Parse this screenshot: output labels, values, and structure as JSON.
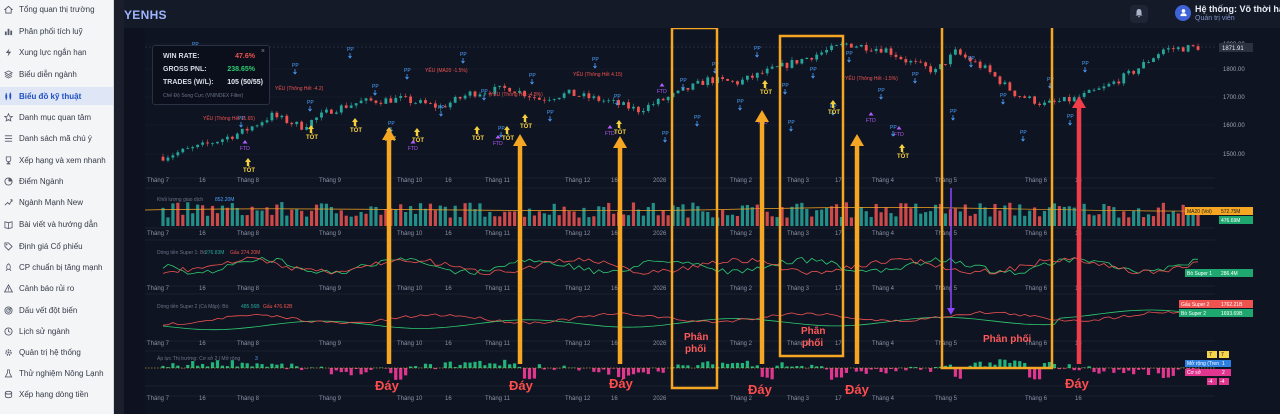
{
  "app": {
    "title": "YENHS"
  },
  "sidebar": {
    "items": [
      {
        "label": "Tổng quan thị trường",
        "icon": "home-icon"
      },
      {
        "label": "Phân phối tích luỹ",
        "icon": "chart-bar-icon"
      },
      {
        "label": "Xung lực ngắn hạn",
        "icon": "lightning-icon"
      },
      {
        "label": "Biểu diễn ngành",
        "icon": "layers-icon"
      },
      {
        "label": "Biểu đồ kỹ thuật",
        "icon": "candle-chart-icon",
        "active": true
      },
      {
        "label": "Danh mục quan tâm",
        "icon": "star-icon"
      },
      {
        "label": "Danh sách mã chú ý",
        "icon": "list-icon"
      },
      {
        "label": "Xếp hạng và xem nhanh",
        "icon": "trophy-icon"
      },
      {
        "label": "Điểm Ngành",
        "icon": "pie-icon"
      },
      {
        "label": "Ngành Mạnh New",
        "icon": "trend-up-icon"
      },
      {
        "label": "Bài viết và hướng dẫn",
        "icon": "book-icon"
      },
      {
        "label": "Định giá Cổ phiếu",
        "icon": "tag-icon"
      },
      {
        "label": "CP chuẩn bị tăng mạnh",
        "icon": "rocket-icon"
      },
      {
        "label": "Cảnh báo rủi ro",
        "icon": "warning-icon"
      },
      {
        "label": "Dấu vết đột biến",
        "icon": "radar-icon"
      },
      {
        "label": "Lịch sử ngành",
        "icon": "history-icon"
      },
      {
        "label": "Quản trị hệ thống",
        "icon": "gear-icon"
      },
      {
        "label": "Thử nghiệm Nông Lạnh",
        "icon": "flask-icon"
      },
      {
        "label": "Xếp hạng dòng tiền",
        "icon": "coins-icon"
      }
    ]
  },
  "user": {
    "name": "Hệ thống: Võ thời hạn",
    "role": "Quản trị viên"
  },
  "stats": {
    "win_rate_label": "WIN RATE:",
    "win_rate_value": "47.6%",
    "gross_pnl_label": "GROSS PNL:",
    "gross_pnl_value": "238.65%",
    "trades_label": "TRADES (W/L):",
    "trades_value": "105 (50/55)",
    "note": "Chế Độ Song Cực (VNINDEX Filter)",
    "close_label": "×"
  },
  "price_axis": {
    "ticks": [
      "1900.00",
      "1800.00",
      "1700.00",
      "1600.00",
      "1500.00"
    ],
    "current_label": "1871.91"
  },
  "time_axis": {
    "labels": [
      "Tháng 7",
      "16",
      "Tháng 8",
      "Tháng 9",
      "Tháng 10",
      "16",
      "Tháng 11",
      "Tháng 12",
      "16",
      "2026",
      "Tháng 2",
      "Tháng 3",
      "17",
      "Tháng 4",
      "Tháng 5",
      "Tháng 6",
      "16"
    ]
  },
  "panels": {
    "volume_title": "Khối lượng giao dịch",
    "volume_value": "852.20M",
    "volume_ma_label": "MA20 (Vol)",
    "volume_ma_value": "572.75M",
    "volume_last": "476.69M",
    "flow1_title": "Dòng tiền Super 1: Bò",
    "flow1_bull": "276.83M",
    "flow1_bear": "Gấu 274.20M",
    "flow1_tag": "Bò Super 1",
    "flow1_tag_value": "286.4M",
    "flow2_title": "Dòng tiền Super 2 (Cá Mập): Bò",
    "flow2_bull": "485.56B",
    "flow2_bear": "Gấu 476.62B",
    "flow2_tag_bear": "Gấu Super 2",
    "flow2_tag_bear_value": "1762.21B",
    "flow2_tag_bull": "Bò Super 2",
    "flow2_tag_bull_value": "1693.69B",
    "pressure_title": "Áp lực Thị trường: Cơ sở 2 | Mở rộng",
    "pressure_value": "3",
    "pressure_tag1": "Mở rộng (Trend)",
    "pressure_tag1_value": "1",
    "pressure_tag2": "Cơ sở",
    "pressure_tag2_value": "2",
    "pressure_badge_top": "7",
    "pressure_badge_top2": "7",
    "pressure_badge_bot": "-4",
    "pressure_badge_bot2": "-4"
  },
  "signals": {
    "buy_label": "TỐT",
    "pp_label": "PP",
    "ftd_label": "FTD",
    "weak_label_1": "YẾU (Thông Hết 11.65)",
    "weak_label_2": "YẾU (Thông Hết -4.2)",
    "weak_label_3": "YẾU (Thông Hết 4.15)",
    "weak_label_4": "YẾU (MA20 -1.5%)",
    "weak_label_5": "YẾU (Thông Hết -4.8%)",
    "weak_label_6": "YẾU (Thông Hết -1.5%)"
  },
  "annotations": {
    "bottom_label": "Đáy",
    "distribution_label": "Phân\nphối",
    "distribution_label_wide": "Phân phối"
  },
  "colors": {
    "up": "#26a69a",
    "down": "#ef5350",
    "orange_box": "#f5a623",
    "red_arrow": "#ef3d4a",
    "buy_yellow": "#f4d03f",
    "pp_blue": "#4aa3ff",
    "ftd_purple": "#b35cff"
  }
}
